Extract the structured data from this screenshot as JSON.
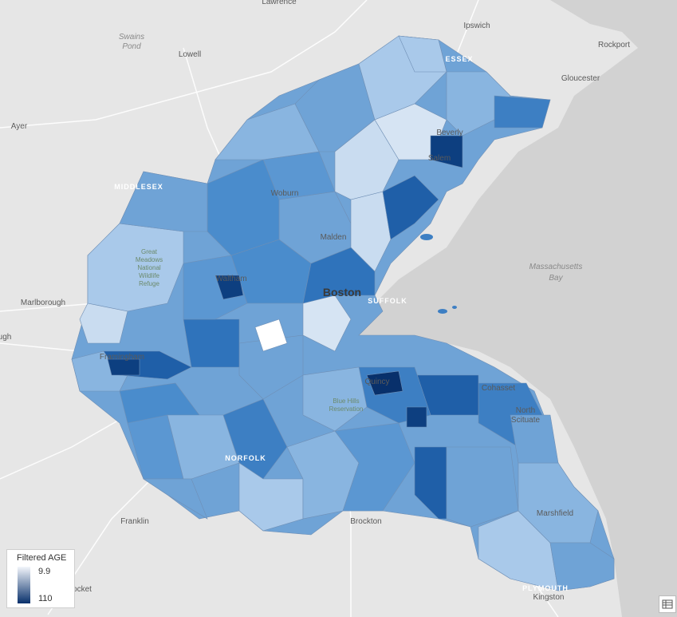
{
  "legend": {
    "title": "Filtered AGE",
    "max_label": "9.9",
    "min_label": "110",
    "color_low": "#f3f6fb",
    "color_high": "#08306b"
  },
  "places": {
    "lawrence": "Lawrence",
    "ipswich": "Ipswich",
    "rockport": "Rockport",
    "gloucester": "Gloucester",
    "lowell": "Lowell",
    "swains_pond": "Swains\nPond",
    "ayer": "Ayer",
    "marlborough": "Marlborough",
    "franklin": "Franklin",
    "brockton": "Brockton",
    "kingston": "Kingston",
    "ocket": "ocket",
    "ugh": "ugh",
    "beverly": "Beverly",
    "salem": "Salem",
    "woburn": "Woburn",
    "malden": "Malden",
    "waltham": "Waltham",
    "boston": "Boston",
    "framingham": "Framingham",
    "quincy": "Quincy",
    "cohasset": "Cohasset",
    "north_scituate": "North Scituate",
    "marshfield": "Marshfield",
    "mass_bay_1": "Massachusetts",
    "mass_bay_2": "Bay",
    "great_meadows": "Great Meadows National Wildlife Refuge",
    "blue_hills": "Blue Hills Reservation",
    "middlesex": "MIDDLESEX",
    "norfolk": "NORFOLK",
    "suffolk": "SUFFOLK",
    "essex": "ESSEX",
    "plymouth": "PLYMOUTH"
  },
  "icons": {
    "table": "table-icon"
  }
}
